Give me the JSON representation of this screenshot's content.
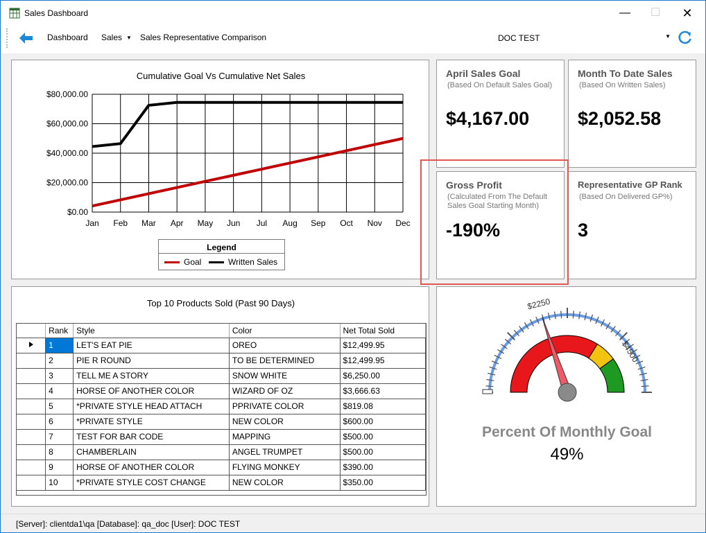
{
  "window": {
    "title": "Sales Dashboard"
  },
  "toolbar": {
    "dashboard": "Dashboard",
    "sales": "Sales",
    "comparison": "Sales Representative Comparison",
    "doc_value": "DOC TEST"
  },
  "chart": {
    "title": "Cumulative Goal Vs Cumulative Net Sales",
    "legend_title": "Legend",
    "legend_goal": "Goal",
    "legend_written": "Written Sales"
  },
  "chart_data": {
    "type": "line",
    "title": "Cumulative Goal Vs Cumulative Net Sales",
    "categories": [
      "Jan",
      "Feb",
      "Mar",
      "Apr",
      "May",
      "Jun",
      "Jul",
      "Aug",
      "Sep",
      "Oct",
      "Nov",
      "Dec"
    ],
    "y_tick_labels": [
      "$0.00",
      "$20,000.00",
      "$40,000.00",
      "$60,000.00",
      "$80,000.00"
    ],
    "ylim": [
      0,
      80000
    ],
    "grid": true,
    "legend_position": "bottom",
    "series": [
      {
        "name": "Goal",
        "color": "#c00000",
        "values": [
          4167,
          8333,
          12500,
          16667,
          20833,
          25000,
          29167,
          33333,
          37500,
          41667,
          45833,
          50000
        ]
      },
      {
        "name": "Written Sales",
        "color": "#000000",
        "values": [
          44500,
          46500,
          72500,
          74500,
          74500,
          74500,
          74500,
          74500,
          74500,
          74500,
          74500,
          74500
        ]
      }
    ]
  },
  "kpis": {
    "goal_title": "April Sales Goal",
    "goal_sub": "(Based On Default Sales Goal)",
    "goal_value": "$4,167.00",
    "mtd_title": "Month To Date Sales",
    "mtd_sub": "(Based On Written Sales)",
    "mtd_value": "$2,052.58",
    "gp_title": "Gross Profit",
    "gp_sub": "(Calculated From The Default Sales Goal Starting Month)",
    "gp_value": "-190%",
    "rank_title": "Representative GP Rank",
    "rank_sub": "(Based On Delivered GP%)",
    "rank_value": "3"
  },
  "products": {
    "title": "Top 10 Products Sold (Past 90 Days)",
    "columns": [
      "Rank",
      "Style",
      "Color",
      "Net Total Sold"
    ],
    "rows": [
      [
        "1",
        "LET'S EAT PIE",
        "OREO",
        "$12,499.95"
      ],
      [
        "2",
        "PIE R ROUND",
        "TO BE DETERMINED",
        "$12,499.95"
      ],
      [
        "3",
        "TELL ME A STORY",
        "SNOW WHITE",
        "$6,250.00"
      ],
      [
        "4",
        "HORSE OF ANOTHER COLOR",
        "WIZARD OF OZ",
        "$3,666.63"
      ],
      [
        "5",
        "*PRIVATE STYLE  HEAD ATTACH",
        "PPRIVATE COLOR",
        "$819.08"
      ],
      [
        "6",
        "*PRIVATE STYLE",
        "NEW COLOR",
        "$600.00"
      ],
      [
        "7",
        "TEST FOR BAR CODE",
        "MAPPING",
        "$500.00"
      ],
      [
        "8",
        "CHAMBERLAIN",
        "ANGEL TRUMPET",
        "$500.00"
      ],
      [
        "9",
        "HORSE OF ANOTHER COLOR",
        "FLYING MONKEY",
        "$390.00"
      ],
      [
        "10",
        "*PRIVATE STYLE COST CHANGE",
        "NEW COLOR",
        "$350.00"
      ]
    ]
  },
  "gauge": {
    "label": "Percent Of Monthly Goal",
    "percent_text": "49%",
    "percent_value": 49,
    "tick_label_1": "$2250",
    "tick_label_2": "$4500",
    "colors": {
      "red": "#e8171b",
      "yellow": "#f2c40f",
      "green": "#1e9a23",
      "scale": "#6a9de8",
      "needle": "#ef5a66"
    }
  },
  "status": {
    "text": "[Server]: clientda1\\qa  [Database]: qa_doc  [User]: DOC TEST"
  }
}
